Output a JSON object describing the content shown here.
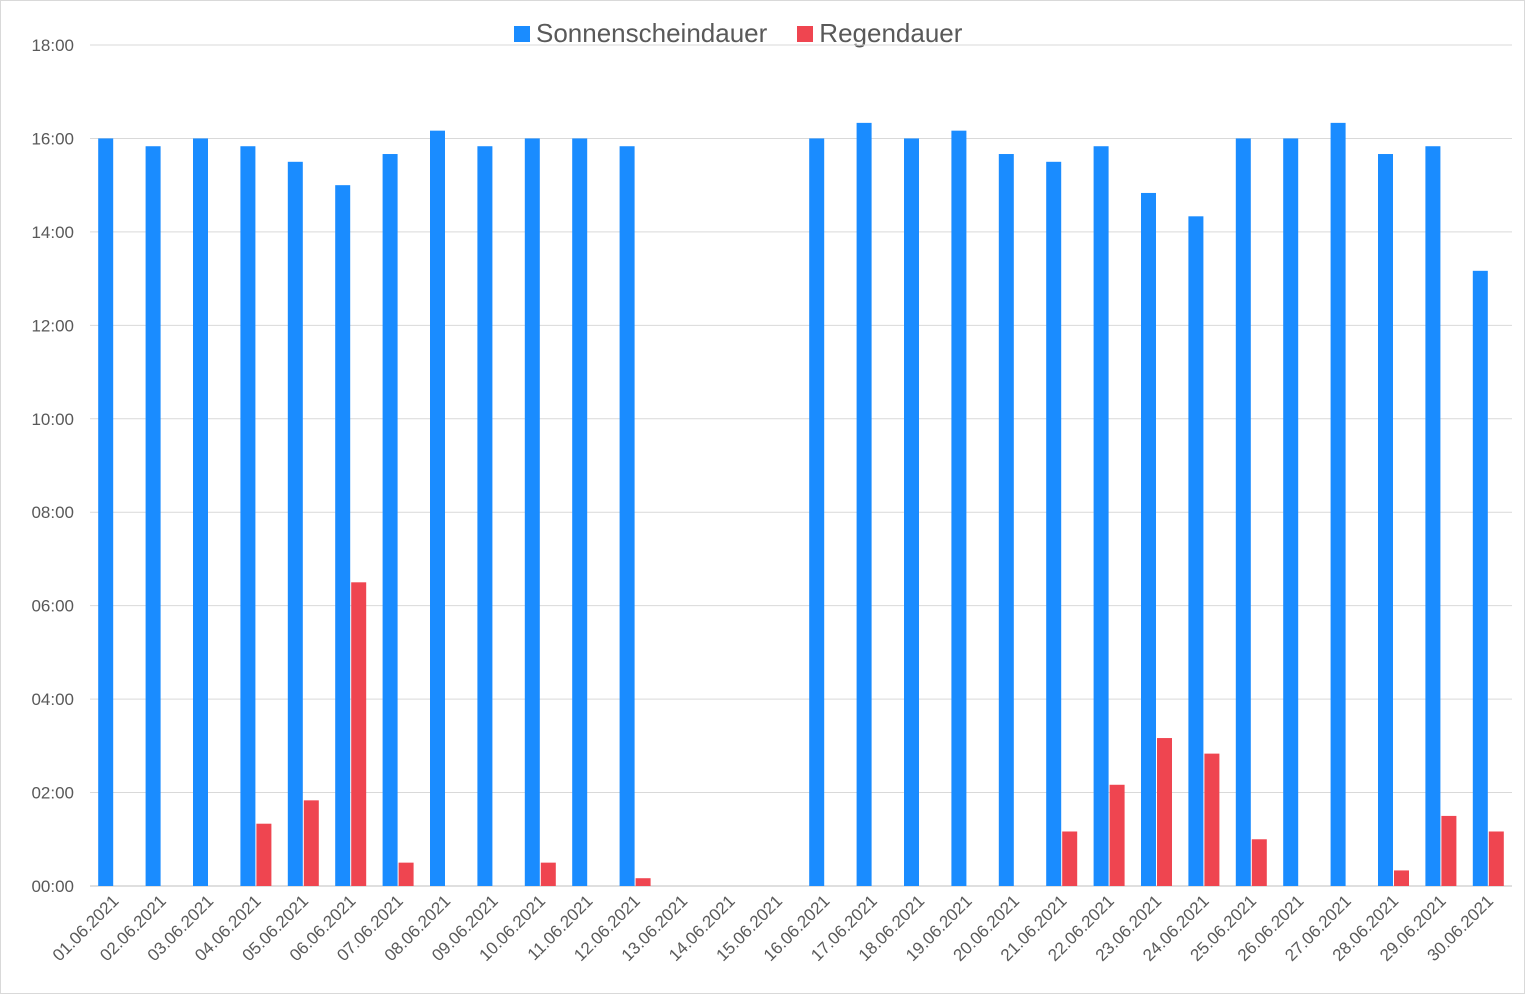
{
  "chart_data": {
    "type": "bar",
    "title": "",
    "xlabel": "",
    "ylabel": "",
    "categories": [
      "01.06.2021",
      "02.06.2021",
      "03.06.2021",
      "04.06.2021",
      "05.06.2021",
      "06.06.2021",
      "07.06.2021",
      "08.06.2021",
      "09.06.2021",
      "10.06.2021",
      "11.06.2021",
      "12.06.2021",
      "13.06.2021",
      "14.06.2021",
      "15.06.2021",
      "16.06.2021",
      "17.06.2021",
      "18.06.2021",
      "19.06.2021",
      "20.06.2021",
      "21.06.2021",
      "22.06.2021",
      "23.06.2021",
      "24.06.2021",
      "25.06.2021",
      "26.06.2021",
      "27.06.2021",
      "28.06.2021",
      "29.06.2021",
      "30.06.2021"
    ],
    "series": [
      {
        "name": "Sonnenscheindauer",
        "color": "#1a8cff",
        "values": [
          "16:00",
          "15:50",
          "16:00",
          "15:50",
          "15:30",
          "15:00",
          "15:40",
          "16:10",
          "15:50",
          "16:00",
          "16:00",
          "15:50",
          null,
          null,
          null,
          "16:00",
          "16:20",
          "16:00",
          "16:10",
          "15:40",
          "15:30",
          "15:50",
          "14:50",
          "14:20",
          "16:00",
          "16:00",
          "16:20",
          "15:40",
          "15:50",
          "13:10"
        ]
      },
      {
        "name": "Regendauer",
        "color": "#ef4550",
        "values": [
          null,
          null,
          null,
          "01:20",
          "01:50",
          "06:30",
          "00:30",
          null,
          null,
          "00:30",
          null,
          "00:10",
          null,
          null,
          null,
          null,
          null,
          null,
          null,
          null,
          "01:10",
          "02:10",
          "03:10",
          "02:50",
          "01:00",
          null,
          null,
          "00:20",
          "01:30",
          "01:10"
        ]
      }
    ],
    "yticks": [
      "00:00",
      "02:00",
      "04:00",
      "06:00",
      "08:00",
      "10:00",
      "12:00",
      "14:00",
      "16:00",
      "18:00"
    ],
    "ylim": [
      "00:00",
      "18:00"
    ],
    "grid": true,
    "legend_position": "top-center"
  }
}
